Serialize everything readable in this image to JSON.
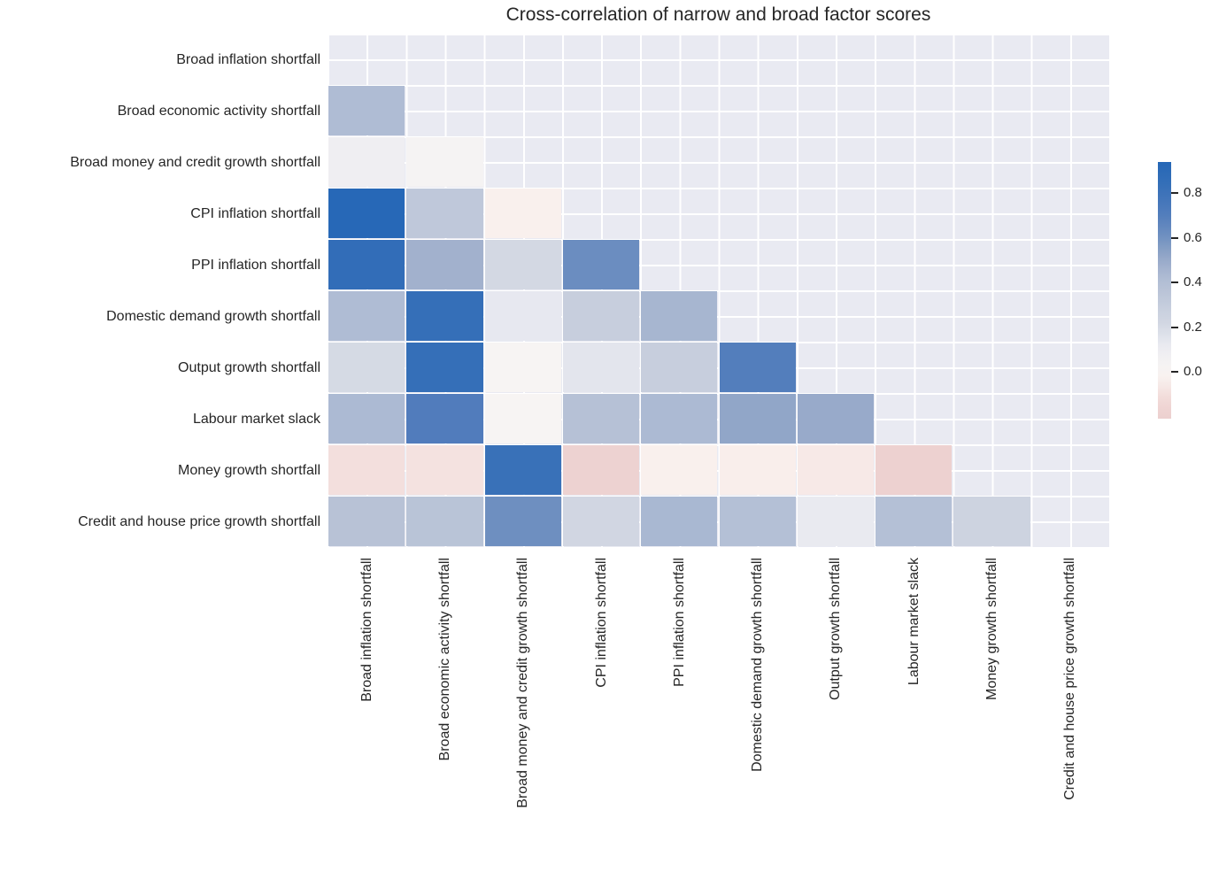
{
  "chart_data": {
    "type": "heatmap",
    "title": "Cross-correlation of narrow and broad factor scores",
    "categories": [
      "Broad inflation shortfall",
      "Broad economic activity shortfall",
      "Broad money and credit growth shortfall",
      "CPI inflation shortfall",
      "PPI inflation shortfall",
      "Domestic demand growth shortfall",
      "Output growth shortfall",
      "Labour market slack",
      "Money growth shortfall",
      "Credit and house price growth shortfall"
    ],
    "rows_note": "y-axis (top to bottom) and x-axis (left to right) both use the same 10 category labels",
    "matrix": [
      [
        null,
        null,
        null,
        null,
        null,
        null,
        null,
        null,
        null,
        null
      ],
      [
        0.42,
        null,
        null,
        null,
        null,
        null,
        null,
        null,
        null,
        null
      ],
      [
        0.08,
        0.03,
        null,
        null,
        null,
        null,
        null,
        null,
        null,
        null
      ],
      [
        0.93,
        0.33,
        -0.03,
        null,
        null,
        null,
        null,
        null,
        null,
        null
      ],
      [
        0.86,
        0.47,
        0.21,
        0.62,
        null,
        null,
        null,
        null,
        null,
        null
      ],
      [
        0.42,
        0.84,
        0.13,
        0.29,
        0.45,
        null,
        null,
        null,
        null,
        null
      ],
      [
        0.2,
        0.84,
        0.01,
        0.15,
        0.29,
        0.7,
        null,
        null,
        null,
        null
      ],
      [
        0.43,
        0.71,
        0.01,
        0.38,
        0.43,
        0.52,
        0.5,
        null,
        null,
        null
      ],
      [
        -0.1,
        -0.09,
        0.82,
        -0.19,
        -0.03,
        -0.04,
        -0.06,
        -0.2,
        null,
        null
      ],
      [
        0.37,
        0.36,
        0.61,
        0.22,
        0.44,
        0.39,
        0.12,
        0.39,
        0.25,
        null
      ]
    ],
    "masked": "upper triangle including diagonal is masked (shows grid background only)",
    "grid": true,
    "legend": false,
    "colorbar": {
      "position": "right",
      "vmin": -0.21,
      "vmax": 0.94,
      "center": 0,
      "tick_values": [
        0.8,
        0.6,
        0.4,
        0.2,
        0.0
      ],
      "tick_labels": [
        "0.8",
        "0.6",
        "0.4",
        "0.2",
        "0.0"
      ]
    },
    "colormap": {
      "name": "diverging red-white-blue (RdBu-like, centered at 0)",
      "strong_positive_blue": "#2567b7",
      "near_zero_white": "#f8f5f3",
      "strong_negative_pink": "#ecd0cf"
    }
  },
  "colors": {
    "figure_background": "#ffffff",
    "plot_background": "#e9eaf2",
    "grid_line": "#ffffff",
    "text": "#262626"
  }
}
